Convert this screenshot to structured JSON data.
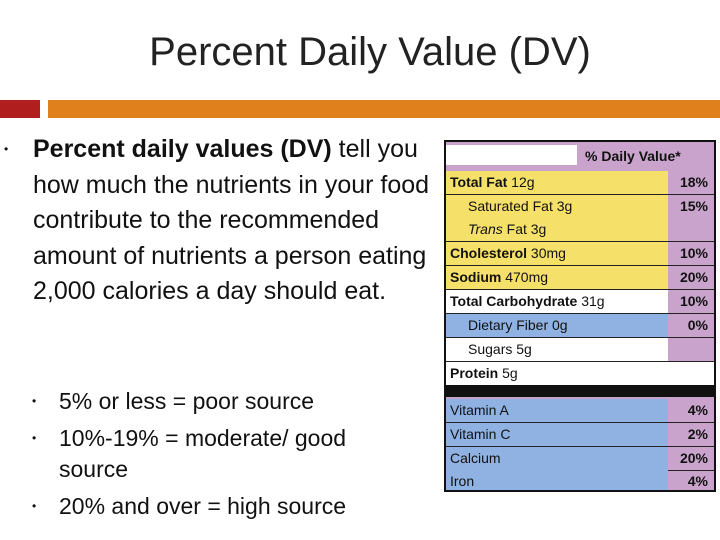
{
  "slide": {
    "title": "Percent Daily Value (DV)"
  },
  "main_bullet": {
    "bold_text": "Percent daily values (DV)",
    "text": " tell you how much the nutrients in your food contribute to the recommended amount of nutrients a person eating 2,000 calories a day should eat."
  },
  "sub_bullets": [
    "5% or less = poor source",
    "10%-19% = moderate/ good source",
    "20% and over = high source"
  ],
  "label": {
    "header": "% Daily Value*",
    "rows": [
      {
        "name_bold": "Total Fat",
        "name_rest": " 12g",
        "pct": "18%"
      },
      {
        "name_bold": "",
        "name_rest": "Saturated Fat 3g",
        "pct": "15%"
      },
      {
        "name_bold": "",
        "name_italic": "Trans",
        "name_rest": " Fat 3g",
        "pct": ""
      },
      {
        "name_bold": "Cholesterol",
        "name_rest": " 30mg",
        "pct": "10%"
      },
      {
        "name_bold": "Sodium",
        "name_rest": " 470mg",
        "pct": "20%"
      },
      {
        "name_bold": "Total Carbohydrate",
        "name_rest": " 31g",
        "pct": "10%"
      },
      {
        "name_bold": "",
        "name_rest": "Dietary Fiber 0g",
        "pct": "0%"
      },
      {
        "name_bold": "",
        "name_rest": "Sugars 5g",
        "pct": ""
      },
      {
        "name_bold": "Protein",
        "name_rest": " 5g",
        "pct": ""
      },
      {
        "name_bold": "",
        "name_rest": "Vitamin A",
        "pct": "4%"
      },
      {
        "name_bold": "",
        "name_rest": "Vitamin C",
        "pct": "2%"
      },
      {
        "name_bold": "",
        "name_rest": "Calcium",
        "pct": "20%"
      },
      {
        "name_bold": "",
        "name_rest": "Iron",
        "pct": "4%"
      }
    ]
  },
  "colors": {
    "accent_red": "#b01e1e",
    "accent_orange": "#e0801c",
    "label_purple": "#c9a3cc",
    "label_yellow": "#f5e169",
    "label_blue": "#8fb2e3"
  }
}
